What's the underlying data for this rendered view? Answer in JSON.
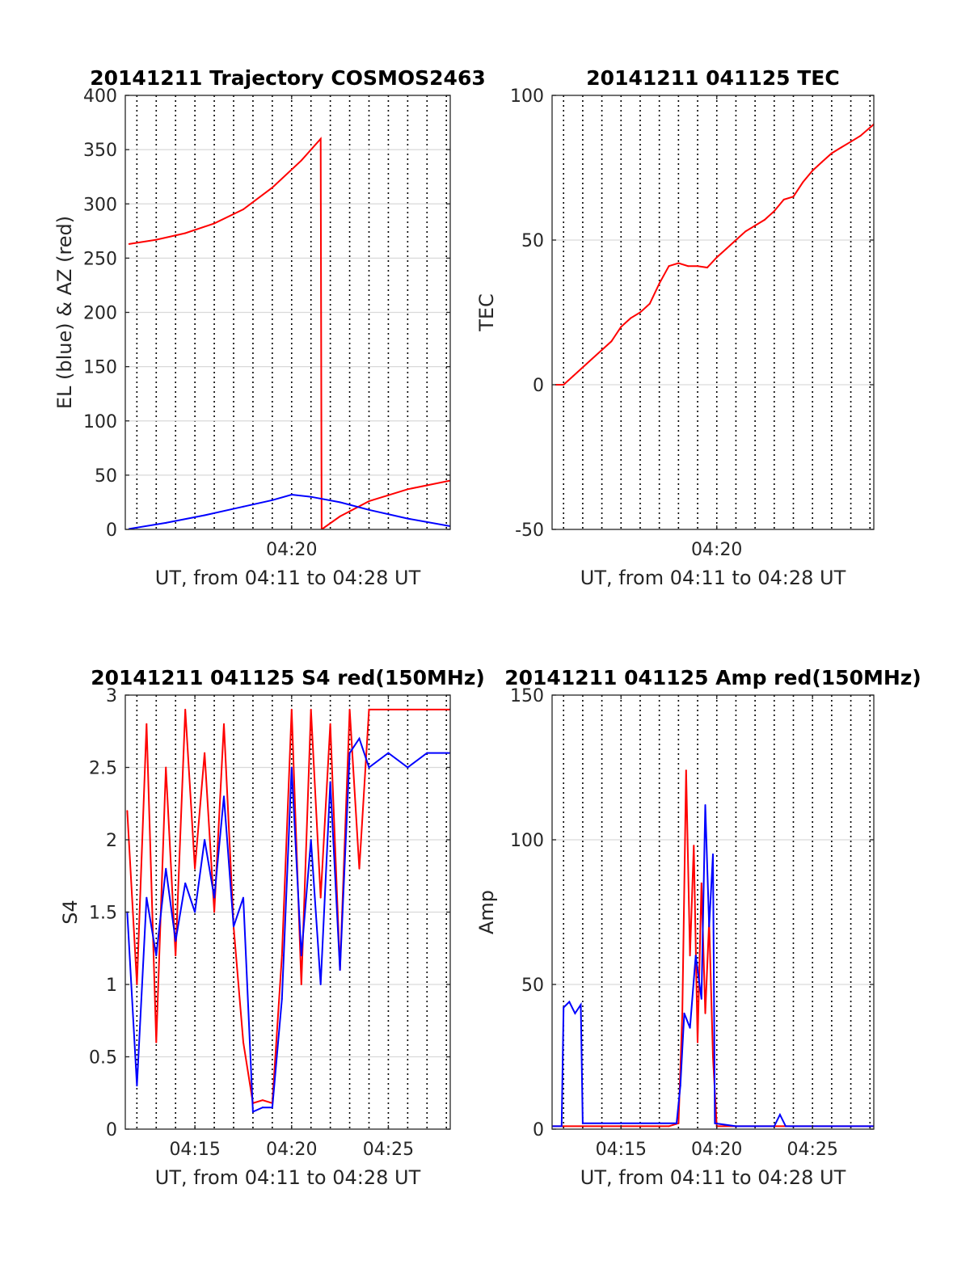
{
  "chart_data": [
    {
      "type": "line",
      "title": "20141211 Trajectory COSMOS2463",
      "xlabel": "UT, from 04:11 to 04:28 UT",
      "ylabel": "EL (blue) & AZ (red)",
      "xlim_min": [
        251.4,
        268.2
      ],
      "ylim": [
        0,
        400
      ],
      "yticks": [
        0,
        50,
        100,
        150,
        200,
        250,
        300,
        350,
        400
      ],
      "yticklabels": [
        "0",
        "50",
        "100",
        "150",
        "200",
        "250",
        "300",
        "350",
        "400"
      ],
      "xticks_min": [
        260
      ],
      "xticklabels": [
        "04:20"
      ],
      "grid": true,
      "series": [
        {
          "color": "#ff0000",
          "x_min": [
            251.6,
            253.0,
            254.5,
            256.0,
            257.5,
            259.0,
            260.5,
            261.5,
            261.55,
            262.5,
            264.0,
            266.0,
            268.2
          ],
          "values": [
            263,
            267,
            273,
            282,
            295,
            315,
            340,
            360,
            0,
            12,
            26,
            37,
            45
          ]
        },
        {
          "color": "#0000ff",
          "x_min": [
            251.6,
            253.5,
            255.5,
            257.5,
            259.0,
            260.0,
            261.0,
            262.5,
            264.0,
            266.0,
            268.2
          ],
          "values": [
            0.5,
            6,
            13,
            21,
            27,
            32,
            30,
            25,
            18,
            10,
            3
          ]
        }
      ]
    },
    {
      "type": "line",
      "title": "20141211 041125 TEC",
      "xlabel": "UT, from 04:11 to 04:28 UT",
      "ylabel": "TEC",
      "xlim_min": [
        251.4,
        268.2
      ],
      "ylim": [
        -50,
        100
      ],
      "yticks": [
        -50,
        0,
        50,
        100
      ],
      "yticklabels": [
        "-50",
        "0",
        "50",
        "100"
      ],
      "xticks_min": [
        260
      ],
      "xticklabels": [
        "04:20"
      ],
      "grid": true,
      "series": [
        {
          "color": "#ff0000",
          "x_min": [
            251.6,
            252.0,
            252.5,
            253.0,
            253.5,
            254.0,
            254.5,
            255.0,
            255.5,
            256.0,
            256.5,
            257.0,
            257.5,
            258.0,
            258.5,
            259.0,
            259.5,
            260.0,
            260.5,
            261.0,
            261.5,
            262.0,
            262.5,
            263.0,
            263.5,
            264.0,
            264.5,
            265.0,
            265.5,
            266.0,
            266.5,
            267.0,
            267.5,
            268.2
          ],
          "values": [
            0,
            0,
            3,
            6,
            9,
            12,
            15,
            20,
            23,
            25,
            28,
            35,
            41,
            42,
            41,
            41,
            40.5,
            44,
            47,
            50,
            53,
            55,
            57,
            60,
            64,
            65,
            70,
            74,
            77,
            80,
            82,
            84,
            86,
            90
          ]
        }
      ]
    },
    {
      "type": "line",
      "title": "20141211 041125 S4 red(150MHz)",
      "xlabel": "UT, from 04:11 to 04:28 UT",
      "ylabel": "S4",
      "xlim_min": [
        251.4,
        268.2
      ],
      "ylim": [
        0,
        3
      ],
      "yticks": [
        0,
        0.5,
        1,
        1.5,
        2,
        2.5,
        3
      ],
      "yticklabels": [
        "0",
        "0.5",
        "1",
        "1.5",
        "2",
        "2.5",
        "3"
      ],
      "xticks_min": [
        255,
        260,
        265
      ],
      "xticklabels": [
        "04:15",
        "04:20",
        "04:25"
      ],
      "grid": true,
      "series": [
        {
          "color": "#ff0000",
          "x_min": [
            251.5,
            252.0,
            252.5,
            253.0,
            253.5,
            254.0,
            254.5,
            255.0,
            255.5,
            256.0,
            256.5,
            257.0,
            257.5,
            258.0,
            258.5,
            259.0,
            259.5,
            260.0,
            260.5,
            261.0,
            261.5,
            262.0,
            262.5,
            263.0,
            263.5,
            264.0,
            265.0,
            266.0,
            267.0,
            268.2
          ],
          "values": [
            2.2,
            1.0,
            2.8,
            0.6,
            2.5,
            1.2,
            2.9,
            1.8,
            2.6,
            1.5,
            2.8,
            1.4,
            0.6,
            0.18,
            0.2,
            0.18,
            1.2,
            2.9,
            1.0,
            2.9,
            1.6,
            2.8,
            1.1,
            2.9,
            1.8,
            2.9,
            2.9,
            2.9,
            2.9,
            2.9
          ]
        },
        {
          "color": "#0000ff",
          "x_min": [
            251.5,
            252.0,
            252.5,
            253.0,
            253.5,
            254.0,
            254.5,
            255.0,
            255.5,
            256.0,
            256.5,
            257.0,
            257.5,
            258.0,
            258.5,
            259.0,
            259.5,
            260.0,
            260.5,
            261.0,
            261.5,
            262.0,
            262.5,
            263.0,
            263.5,
            264.0,
            265.0,
            266.0,
            267.0,
            268.2
          ],
          "values": [
            1.5,
            0.3,
            1.6,
            1.2,
            1.8,
            1.3,
            1.7,
            1.5,
            2.0,
            1.6,
            2.3,
            1.4,
            1.6,
            0.12,
            0.15,
            0.15,
            0.9,
            2.5,
            1.2,
            2.0,
            1.0,
            2.4,
            1.1,
            2.6,
            2.7,
            2.5,
            2.6,
            2.5,
            2.6,
            2.6
          ]
        }
      ]
    },
    {
      "type": "line",
      "title": "20141211 041125 Amp red(150MHz)",
      "xlabel": "UT, from 04:11 to 04:28 UT",
      "ylabel": "Amp",
      "xlim_min": [
        251.4,
        268.2
      ],
      "ylim": [
        0,
        150
      ],
      "yticks": [
        0,
        50,
        100,
        150
      ],
      "yticklabels": [
        "0",
        "50",
        "100",
        "150"
      ],
      "xticks_min": [
        255,
        260,
        265
      ],
      "xticklabels": [
        "04:15",
        "04:20",
        "04:25"
      ],
      "grid": true,
      "series": [
        {
          "color": "#ff0000",
          "x_min": [
            251.4,
            257.5,
            258.0,
            258.2,
            258.4,
            258.6,
            258.8,
            259.0,
            259.2,
            259.4,
            259.6,
            259.8,
            260.0,
            268.2
          ],
          "values": [
            1,
            1,
            2,
            40,
            124,
            60,
            98,
            30,
            85,
            40,
            72,
            25,
            1,
            1
          ]
        },
        {
          "color": "#0000ff",
          "x_min": [
            251.4,
            251.9,
            252.0,
            252.3,
            252.6,
            252.9,
            253.0,
            257.9,
            258.1,
            258.3,
            258.6,
            258.9,
            259.2,
            259.4,
            259.6,
            259.8,
            259.9,
            261.0,
            263.0,
            263.3,
            263.6,
            268.2
          ],
          "values": [
            1,
            1,
            42,
            44,
            40,
            43,
            2,
            2,
            15,
            40,
            35,
            60,
            45,
            112,
            70,
            95,
            2,
            1,
            1,
            5,
            1,
            1
          ]
        }
      ]
    }
  ]
}
